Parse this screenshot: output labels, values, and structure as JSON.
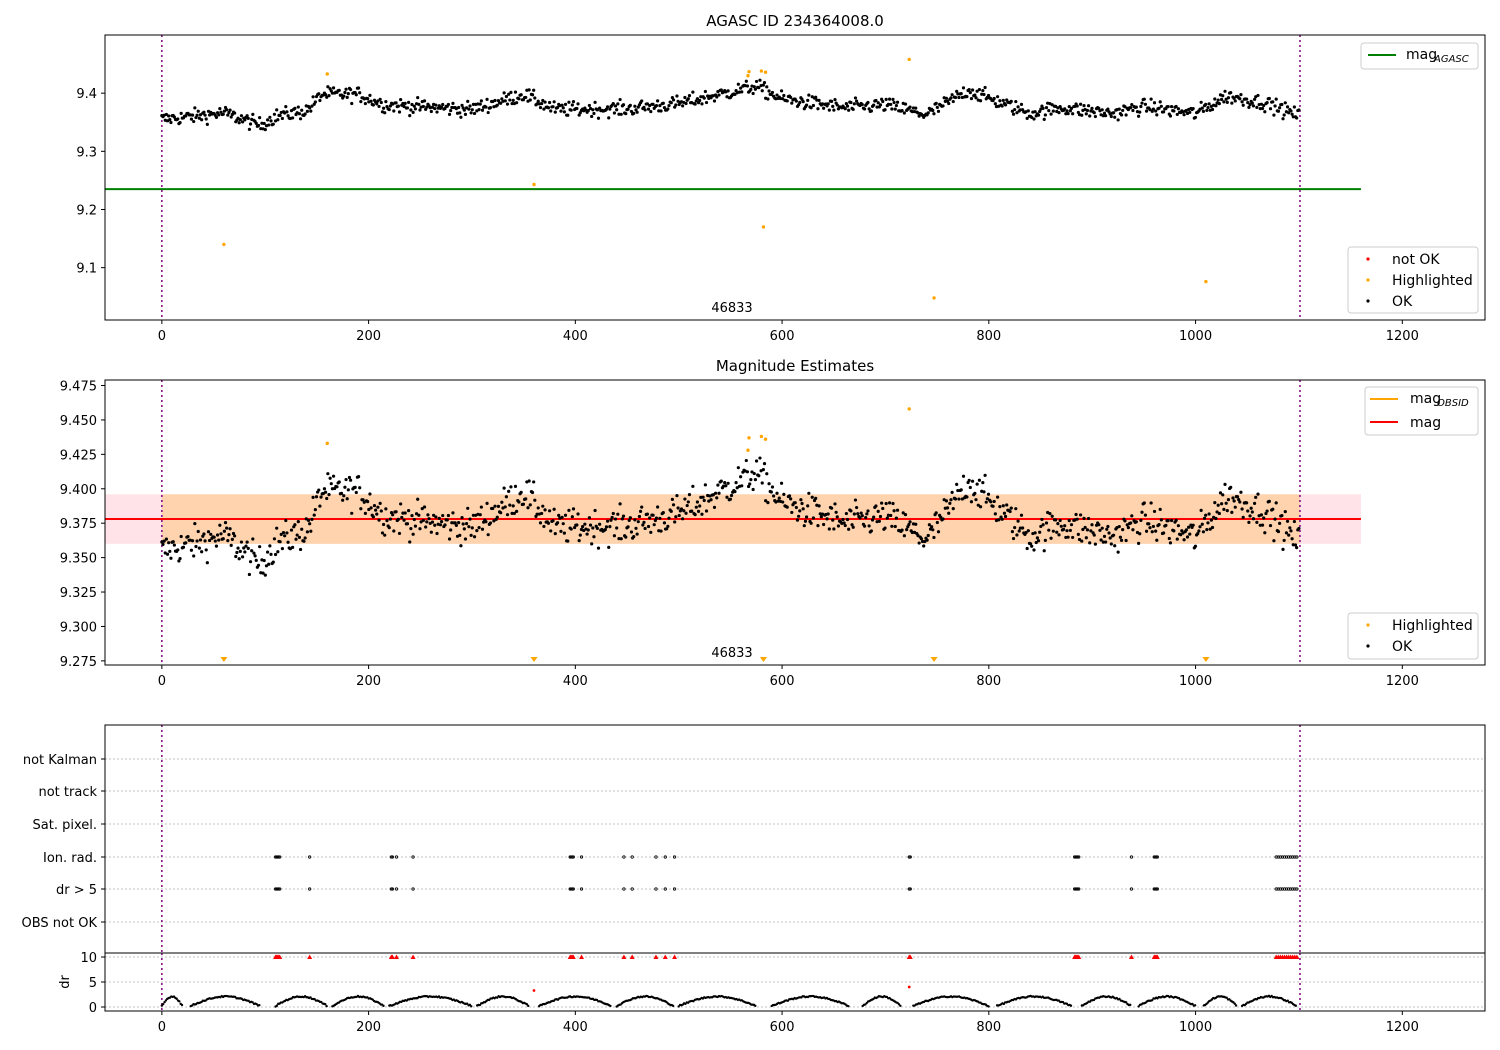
{
  "chart_data": [
    {
      "type": "scatter",
      "title": "AGASC ID 234364008.0",
      "annotation": "46833",
      "xlim": [
        -55,
        1280
      ],
      "ylim": [
        9.01,
        9.5
      ],
      "xticks": [
        0,
        200,
        400,
        600,
        800,
        1000,
        1200
      ],
      "yticks": [
        9.1,
        9.2,
        9.3,
        9.4
      ],
      "grid": false,
      "reference_lines": [
        {
          "name": "mag_AGASC",
          "value": 9.235,
          "x_range": [
            -55,
            1160
          ],
          "color": "#008000"
        }
      ],
      "vlines": [
        0,
        1101
      ],
      "vline_color": "#800080",
      "series": [
        {
          "name": "not OK",
          "color": "#ff0000",
          "points": []
        },
        {
          "name": "Highlighted",
          "color": "#ffa500",
          "points": [
            [
              60,
              9.14
            ],
            [
              160,
              9.433
            ],
            [
              360,
              9.243
            ],
            [
              567,
              9.43
            ],
            [
              568,
              9.437
            ],
            [
              580,
              9.438
            ],
            [
              582,
              9.17
            ],
            [
              584,
              9.436
            ],
            [
              723,
              9.458
            ],
            [
              747,
              9.048
            ],
            [
              1010,
              9.076
            ]
          ]
        },
        {
          "name": "OK",
          "color": "#000000",
          "trend_anchors": [
            [
              0,
              9.355
            ],
            [
              30,
              9.36
            ],
            [
              60,
              9.366
            ],
            [
              95,
              9.345
            ],
            [
              110,
              9.36
            ],
            [
              140,
              9.37
            ],
            [
              155,
              9.398
            ],
            [
              190,
              9.398
            ],
            [
              215,
              9.38
            ],
            [
              300,
              9.372
            ],
            [
              350,
              9.398
            ],
            [
              380,
              9.372
            ],
            [
              450,
              9.373
            ],
            [
              500,
              9.382
            ],
            [
              540,
              9.398
            ],
            [
              575,
              9.412
            ],
            [
              600,
              9.39
            ],
            [
              660,
              9.375
            ],
            [
              700,
              9.38
            ],
            [
              740,
              9.363
            ],
            [
              780,
              9.405
            ],
            [
              840,
              9.365
            ],
            [
              870,
              9.375
            ],
            [
              920,
              9.365
            ],
            [
              950,
              9.377
            ],
            [
              1000,
              9.365
            ],
            [
              1030,
              9.395
            ],
            [
              1070,
              9.382
            ],
            [
              1101,
              9.36
            ]
          ],
          "noise": 0.009
        }
      ],
      "legend_upper": {
        "position": "upper right",
        "entries": [
          {
            "label": "mag",
            "subscript": "AGASC",
            "color": "#008000"
          }
        ]
      },
      "legend_lower": {
        "position": "lower right",
        "entries": [
          {
            "label": "not OK",
            "color": "#ff0000"
          },
          {
            "label": "Highlighted",
            "color": "#ffa500"
          },
          {
            "label": "OK",
            "color": "#000000"
          }
        ]
      }
    },
    {
      "type": "scatter",
      "title": "Magnitude Estimates",
      "annotation": "46833",
      "xlim": [
        -55,
        1280
      ],
      "ylim": [
        9.272,
        9.479
      ],
      "xticks": [
        0,
        200,
        400,
        600,
        800,
        1000,
        1200
      ],
      "yticks": [
        9.275,
        9.3,
        9.325,
        9.35,
        9.375,
        9.4,
        9.425,
        9.45,
        9.475
      ],
      "ytick_labels": [
        "9.275",
        "9.300",
        "9.325",
        "9.350",
        "9.375",
        "9.400",
        "9.425",
        "9.450",
        "9.475"
      ],
      "grid": false,
      "mag": 9.378,
      "mag_band": [
        9.36,
        9.396
      ],
      "mag_obsid": 9.378,
      "vlines": [
        0,
        1101
      ],
      "series": [
        {
          "name": "Highlighted",
          "color": "#ffa500",
          "points": [
            [
              160,
              9.433
            ],
            [
              567,
              9.428
            ],
            [
              568,
              9.437
            ],
            [
              580,
              9.438
            ],
            [
              584,
              9.436
            ],
            [
              723,
              9.458
            ]
          ]
        },
        {
          "name": "Highlighted (below range)",
          "color": "#ffa500",
          "marker": "triangle-down",
          "x": [
            60,
            360,
            582,
            747,
            1010
          ]
        },
        {
          "name": "OK",
          "color": "#000000"
        }
      ],
      "legend_upper": {
        "position": "upper right",
        "entries": [
          {
            "label": "mag",
            "subscript": "OBSID",
            "color": "#ffa500"
          },
          {
            "label": "mag",
            "subscript": "",
            "color": "#ff0000"
          }
        ]
      },
      "legend_lower": {
        "position": "lower right",
        "entries": [
          {
            "label": "Highlighted",
            "color": "#ffa500"
          },
          {
            "label": "OK",
            "color": "#000000"
          }
        ]
      }
    },
    {
      "type": "scatter",
      "title": "",
      "xlim": [
        -55,
        1280
      ],
      "xticks": [
        0,
        200,
        400,
        600,
        800,
        1000,
        1200
      ],
      "flag_rows": [
        "not Kalman",
        "not track",
        "Sat. pixel.",
        "Ion. rad.",
        "dr > 5",
        "OBS not OK"
      ],
      "flagged_x": [
        110,
        111,
        112,
        113,
        114,
        143,
        222,
        223,
        227,
        243,
        395,
        396,
        397,
        398,
        406,
        447,
        455,
        478,
        487,
        496,
        723,
        724,
        883,
        884,
        885,
        886,
        887,
        938,
        960,
        961,
        962,
        963,
        1078,
        1080,
        1082,
        1084,
        1086,
        1088,
        1090,
        1092,
        1094,
        1096,
        1098
      ],
      "flagged_rows": [
        "Ion. rad.",
        "dr > 5"
      ],
      "dr": {
        "ylabel": "dr",
        "yticks": [
          0,
          5,
          10
        ],
        "ylim": [
          -0.8,
          10.8
        ],
        "cap": 10,
        "outliers": [
          [
            360,
            3.3
          ],
          [
            723,
            4.0
          ]
        ],
        "outlier_color": "#ff0000",
        "capped_color": "#ff0000",
        "ok_color": "#000000"
      },
      "vlines": [
        0,
        1101
      ]
    }
  ]
}
